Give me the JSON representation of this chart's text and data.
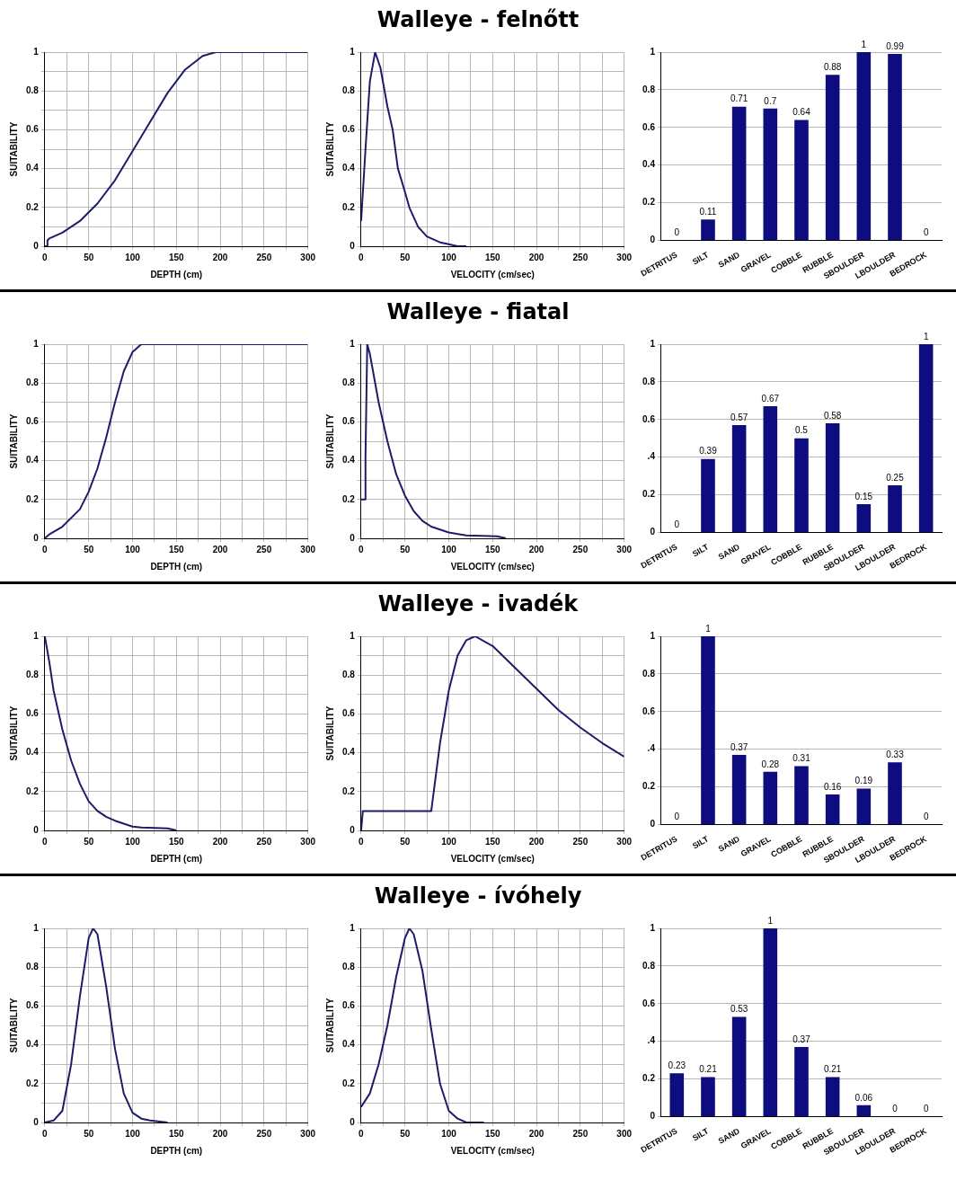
{
  "chart_data": [
    {
      "type": "line",
      "xlabel": "DEPTH (cm)",
      "ylabel": "SUITABILITY",
      "x": [
        0,
        3,
        3,
        5,
        20,
        40,
        60,
        80,
        100,
        120,
        140,
        160,
        180,
        195,
        300
      ],
      "values": [
        0,
        0,
        0.03,
        0.04,
        0.07,
        0.13,
        0.22,
        0.34,
        0.49,
        0.64,
        0.79,
        0.91,
        0.98,
        1,
        1
      ],
      "color": "#1c1c6b",
      "xlim": [
        0,
        300
      ],
      "xticks": [
        0,
        {
          "value": 25,
          "label": null
        },
        50,
        {
          "value": 75,
          "label": null
        },
        100,
        {
          "value": 125,
          "label": null
        },
        150,
        {
          "value": 175,
          "label": null
        },
        200,
        {
          "value": 225,
          "label": null
        },
        250,
        {
          "value": 275,
          "label": null
        },
        300
      ],
      "ylim": [
        0,
        1
      ],
      "yticks": [
        0,
        {
          "value": 0.1,
          "label": null
        },
        0.2,
        {
          "value": 0.3,
          "label": null
        },
        0.4,
        {
          "value": 0.5,
          "label": null
        },
        0.6,
        {
          "value": 0.7,
          "label": null
        },
        0.8,
        {
          "value": 0.9,
          "label": null
        },
        1
      ],
      "grid": true
    },
    {
      "type": "line",
      "title": "Walleye - felnőtt",
      "xlabel": "VELOCITY (cm/sec)",
      "ylabel": "SUITABILITY",
      "x": [
        0,
        5,
        10,
        16,
        22,
        30,
        36,
        42,
        50,
        55,
        65,
        75,
        90,
        100,
        110,
        120
      ],
      "values": [
        0.13,
        0.5,
        0.85,
        1,
        0.92,
        0.72,
        0.6,
        0.4,
        0.28,
        0.2,
        0.1,
        0.05,
        0.02,
        0.01,
        0,
        0
      ],
      "color": "#1c1c6b",
      "xlim": [
        0,
        300
      ],
      "xticks": [
        0,
        {
          "value": 25,
          "label": null
        },
        50,
        {
          "value": 75,
          "label": null
        },
        100,
        {
          "value": 125,
          "label": null
        },
        150,
        {
          "value": 175,
          "label": null
        },
        200,
        {
          "value": 225,
          "label": null
        },
        250,
        {
          "value": 275,
          "label": null
        },
        300
      ],
      "ylim": [
        0,
        1
      ],
      "yticks": [
        0,
        {
          "value": 0.1,
          "label": null
        },
        0.2,
        {
          "value": 0.3,
          "label": null
        },
        0.4,
        {
          "value": 0.5,
          "label": null
        },
        0.6,
        {
          "value": 0.7,
          "label": null
        },
        0.8,
        {
          "value": 0.9,
          "label": null
        },
        1
      ],
      "grid": true
    },
    {
      "type": "bar",
      "categories": [
        "DETRITUS",
        "SILT",
        "SAND",
        "GRAVEL",
        "COBBLE",
        "RUBBLE",
        "SBOULDER",
        "LBOULDER",
        "BEDROCK"
      ],
      "values": [
        0,
        0.11,
        0.71,
        0.7,
        0.64,
        0.88,
        1,
        0.99,
        0
      ],
      "color": "#0d0d80",
      "ylim": [
        0,
        1
      ],
      "yticks": [
        0,
        0.2,
        0.4,
        0.6,
        0.8,
        1
      ],
      "grid": "y",
      "data_labels": true
    },
    {
      "type": "line",
      "xlabel": "DEPTH (cm)",
      "ylabel": "SUITABILITY",
      "x": [
        0,
        5,
        20,
        40,
        50,
        60,
        70,
        80,
        90,
        100,
        110,
        300
      ],
      "values": [
        0,
        0.02,
        0.06,
        0.15,
        0.24,
        0.36,
        0.52,
        0.7,
        0.86,
        0.96,
        1,
        1
      ],
      "color": "#1c1c6b",
      "xlim": [
        0,
        300
      ],
      "xticks": [
        0,
        {
          "value": 25,
          "label": null
        },
        50,
        {
          "value": 75,
          "label": null
        },
        100,
        {
          "value": 125,
          "label": null
        },
        150,
        {
          "value": 175,
          "label": null
        },
        200,
        {
          "value": 225,
          "label": null
        },
        250,
        {
          "value": 275,
          "label": null
        },
        300
      ],
      "ylim": [
        0,
        1
      ],
      "yticks": [
        0,
        {
          "value": 0.1,
          "label": null
        },
        0.2,
        {
          "value": 0.3,
          "label": null
        },
        0.4,
        {
          "value": 0.5,
          "label": null
        },
        0.6,
        {
          "value": 0.7,
          "label": null
        },
        0.8,
        {
          "value": 0.9,
          "label": null
        },
        1
      ],
      "grid": true
    },
    {
      "type": "line",
      "title": "Walleye - fiatal",
      "xlabel": "VELOCITY (cm/sec)",
      "ylabel": "SUITABILITY",
      "x": [
        0,
        5,
        5,
        7,
        10,
        20,
        30,
        40,
        50,
        60,
        70,
        80,
        100,
        120,
        155,
        165
      ],
      "values": [
        0.2,
        0.2,
        0.42,
        1,
        0.95,
        0.7,
        0.5,
        0.33,
        0.22,
        0.14,
        0.09,
        0.06,
        0.03,
        0.015,
        0.01,
        0
      ],
      "color": "#1c1c6b",
      "xlim": [
        0,
        300
      ],
      "xticks": [
        0,
        {
          "value": 25,
          "label": null
        },
        50,
        {
          "value": 75,
          "label": null
        },
        100,
        {
          "value": 125,
          "label": null
        },
        150,
        {
          "value": 175,
          "label": null
        },
        200,
        {
          "value": 225,
          "label": null
        },
        250,
        {
          "value": 275,
          "label": null
        },
        300
      ],
      "ylim": [
        0,
        1
      ],
      "yticks": [
        0,
        {
          "value": 0.1,
          "label": null
        },
        0.2,
        {
          "value": 0.3,
          "label": null
        },
        0.4,
        {
          "value": 0.5,
          "label": null
        },
        0.6,
        {
          "value": 0.7,
          "label": null
        },
        0.8,
        {
          "value": 0.9,
          "label": null
        },
        1
      ],
      "grid": true
    },
    {
      "type": "bar",
      "categories": [
        "DETRITUS",
        "SILT",
        "SAND",
        "GRAVEL",
        "COBBLE",
        "RUBBLE",
        "SBOULDER",
        "LBOULDER",
        "BEDROCK"
      ],
      "values": [
        0,
        0.39,
        0.57,
        0.67,
        0.5,
        0.58,
        0.15,
        0.25,
        1
      ],
      "color": "#0d0d80",
      "ylim": [
        0,
        1
      ],
      "yticks": [
        0,
        0.2,
        {
          "value": 0.4,
          "label": ".4"
        },
        0.6,
        0.8,
        1
      ],
      "grid": "y",
      "data_labels": true
    },
    {
      "type": "line",
      "xlabel": "DEPTH (cm)",
      "ylabel": "SUITABILITY",
      "x": [
        0,
        5,
        10,
        20,
        30,
        40,
        50,
        60,
        70,
        80,
        100,
        110,
        140,
        150
      ],
      "values": [
        1,
        0.87,
        0.72,
        0.52,
        0.36,
        0.24,
        0.15,
        0.1,
        0.07,
        0.05,
        0.02,
        0.015,
        0.01,
        0
      ],
      "color": "#1c1c6b",
      "xlim": [
        0,
        300
      ],
      "xticks": [
        0,
        {
          "value": 25,
          "label": null
        },
        50,
        {
          "value": 75,
          "label": null
        },
        100,
        {
          "value": 125,
          "label": null
        },
        150,
        {
          "value": 175,
          "label": null
        },
        200,
        {
          "value": 225,
          "label": null
        },
        250,
        {
          "value": 275,
          "label": null
        },
        300
      ],
      "ylim": [
        0,
        1
      ],
      "yticks": [
        0,
        {
          "value": 0.1,
          "label": null
        },
        0.2,
        {
          "value": 0.3,
          "label": null
        },
        0.4,
        {
          "value": 0.5,
          "label": null
        },
        0.6,
        {
          "value": 0.7,
          "label": null
        },
        0.8,
        {
          "value": 0.9,
          "label": null
        },
        1
      ],
      "grid": true
    },
    {
      "type": "line",
      "title": "Walleye - ivadék",
      "xlabel": "VELOCITY (cm/sec)",
      "ylabel": "SUITABILITY",
      "x": [
        0,
        2,
        80,
        90,
        100,
        110,
        120,
        130,
        150,
        175,
        200,
        225,
        250,
        275,
        300
      ],
      "values": [
        0,
        0.1,
        0.1,
        0.45,
        0.72,
        0.9,
        0.98,
        1,
        0.95,
        0.84,
        0.73,
        0.62,
        0.53,
        0.45,
        0.38
      ],
      "color": "#1c1c6b",
      "xlim": [
        0,
        300
      ],
      "xticks": [
        0,
        {
          "value": 25,
          "label": null
        },
        50,
        {
          "value": 75,
          "label": null
        },
        100,
        {
          "value": 125,
          "label": null
        },
        150,
        {
          "value": 175,
          "label": null
        },
        200,
        {
          "value": 225,
          "label": null
        },
        250,
        {
          "value": 275,
          "label": null
        },
        300
      ],
      "ylim": [
        0,
        1
      ],
      "yticks": [
        0,
        {
          "value": 0.1,
          "label": null
        },
        0.2,
        {
          "value": 0.3,
          "label": null
        },
        0.4,
        {
          "value": 0.5,
          "label": null
        },
        0.6,
        {
          "value": 0.7,
          "label": null
        },
        0.8,
        {
          "value": 0.9,
          "label": null
        },
        1
      ],
      "grid": true
    },
    {
      "type": "bar",
      "categories": [
        "DETRITUS",
        "SILT",
        "SAND",
        "GRAVEL",
        "COBBLE",
        "RUBBLE",
        "SBOULDER",
        "LBOULDER",
        "BEDROCK"
      ],
      "values": [
        0,
        1,
        0.37,
        0.28,
        0.31,
        0.16,
        0.19,
        0.33,
        0
      ],
      "color": "#0d0d80",
      "ylim": [
        0,
        1
      ],
      "yticks": [
        0,
        0.2,
        {
          "value": 0.4,
          "label": ".4"
        },
        0.6,
        0.8,
        1
      ],
      "grid": "y",
      "data_labels": true
    },
    {
      "type": "line",
      "xlabel": "DEPTH (cm)",
      "ylabel": "SUITABILITY",
      "x": [
        0,
        10,
        20,
        30,
        40,
        50,
        55,
        60,
        70,
        80,
        90,
        100,
        110,
        120,
        140
      ],
      "values": [
        0,
        0.01,
        0.06,
        0.3,
        0.65,
        0.95,
        1,
        0.97,
        0.7,
        0.38,
        0.15,
        0.05,
        0.02,
        0.01,
        0
      ],
      "color": "#1c1c6b",
      "xlim": [
        0,
        300
      ],
      "xticks": [
        0,
        {
          "value": 25,
          "label": null
        },
        50,
        {
          "value": 75,
          "label": null
        },
        100,
        {
          "value": 125,
          "label": null
        },
        150,
        {
          "value": 175,
          "label": null
        },
        200,
        {
          "value": 225,
          "label": null
        },
        250,
        {
          "value": 275,
          "label": null
        },
        300
      ],
      "ylim": [
        0,
        1
      ],
      "yticks": [
        0,
        {
          "value": 0.1,
          "label": null
        },
        0.2,
        {
          "value": 0.3,
          "label": null
        },
        0.4,
        {
          "value": 0.5,
          "label": null
        },
        0.6,
        {
          "value": 0.7,
          "label": null
        },
        0.8,
        {
          "value": 0.9,
          "label": null
        },
        1
      ],
      "grid": true
    },
    {
      "type": "line",
      "title": "Walleye - ívóhely",
      "xlabel": "VELOCITY (cm/sec)",
      "ylabel": "SUITABILITY",
      "x": [
        0,
        10,
        20,
        30,
        40,
        50,
        55,
        60,
        70,
        80,
        90,
        100,
        110,
        120,
        140
      ],
      "values": [
        0.08,
        0.15,
        0.3,
        0.5,
        0.75,
        0.95,
        1,
        0.97,
        0.78,
        0.48,
        0.2,
        0.06,
        0.02,
        0,
        0
      ],
      "color": "#1c1c6b",
      "xlim": [
        0,
        300
      ],
      "xticks": [
        0,
        {
          "value": 25,
          "label": null
        },
        50,
        {
          "value": 75,
          "label": null
        },
        100,
        {
          "value": 125,
          "label": null
        },
        150,
        {
          "value": 175,
          "label": null
        },
        200,
        {
          "value": 225,
          "label": null
        },
        250,
        {
          "value": 275,
          "label": null
        },
        300
      ],
      "ylim": [
        0,
        1
      ],
      "yticks": [
        0,
        {
          "value": 0.1,
          "label": null
        },
        0.2,
        {
          "value": 0.3,
          "label": null
        },
        0.4,
        {
          "value": 0.5,
          "label": null
        },
        0.6,
        {
          "value": 0.7,
          "label": null
        },
        0.8,
        {
          "value": 0.9,
          "label": null
        },
        1
      ],
      "grid": true
    },
    {
      "type": "bar",
      "categories": [
        "DETRITUS",
        "SILT",
        "SAND",
        "GRAVEL",
        "COBBLE",
        "RUBBLE",
        "SBOULDER",
        "LBOULDER",
        "BEDROCK"
      ],
      "values": [
        0.23,
        0.21,
        0.53,
        1,
        0.37,
        0.21,
        0.06,
        0,
        0
      ],
      "color": "#0d0d80",
      "ylim": [
        0,
        1
      ],
      "yticks": [
        0,
        0.2,
        {
          "value": 0.4,
          "label": ".4"
        },
        0.6,
        0.8,
        1
      ],
      "grid": "y",
      "data_labels": true
    }
  ]
}
